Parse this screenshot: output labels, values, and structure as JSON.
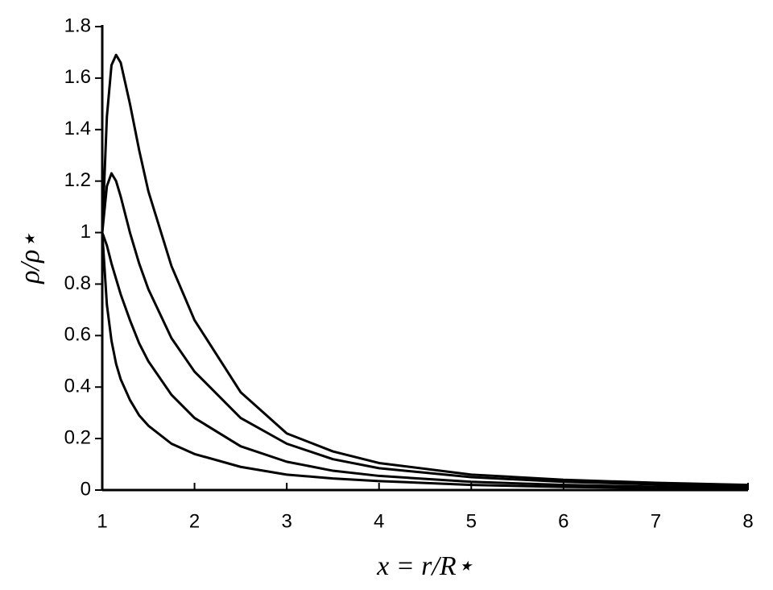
{
  "chart_data": {
    "type": "line",
    "xlabel": "x = r/R⋆",
    "ylabel": "ρ/ρ⋆",
    "x": [
      1,
      1.05,
      1.1,
      1.15,
      1.2,
      1.3,
      1.4,
      1.5,
      1.75,
      2,
      2.5,
      3,
      3.5,
      4,
      5,
      6,
      7,
      8
    ],
    "series": [
      {
        "color": "#000000",
        "values": [
          1.0,
          0.72,
          0.58,
          0.49,
          0.43,
          0.35,
          0.29,
          0.25,
          0.18,
          0.14,
          0.09,
          0.06,
          0.045,
          0.035,
          0.02,
          0.012,
          0.008,
          0.005
        ]
      },
      {
        "color": "#000000",
        "values": [
          1.0,
          0.95,
          0.88,
          0.82,
          0.76,
          0.66,
          0.57,
          0.5,
          0.37,
          0.28,
          0.17,
          0.11,
          0.075,
          0.055,
          0.032,
          0.02,
          0.013,
          0.009
        ]
      },
      {
        "color": "#000000",
        "values": [
          1.0,
          1.18,
          1.23,
          1.2,
          1.14,
          1.0,
          0.88,
          0.78,
          0.59,
          0.46,
          0.28,
          0.18,
          0.12,
          0.085,
          0.05,
          0.032,
          0.022,
          0.015
        ]
      },
      {
        "color": "#000000",
        "values": [
          1.0,
          1.45,
          1.65,
          1.69,
          1.66,
          1.5,
          1.32,
          1.16,
          0.87,
          0.66,
          0.38,
          0.22,
          0.15,
          0.105,
          0.06,
          0.04,
          0.028,
          0.02
        ]
      }
    ],
    "xlim": [
      1,
      8
    ],
    "xticks": [
      1,
      2,
      3,
      4,
      5,
      6,
      7,
      8
    ],
    "ylim": [
      0,
      1.8
    ],
    "yticks": [
      0,
      0.2,
      0.4,
      0.6,
      0.8,
      1,
      1.2,
      1.4,
      1.6,
      1.8
    ]
  }
}
